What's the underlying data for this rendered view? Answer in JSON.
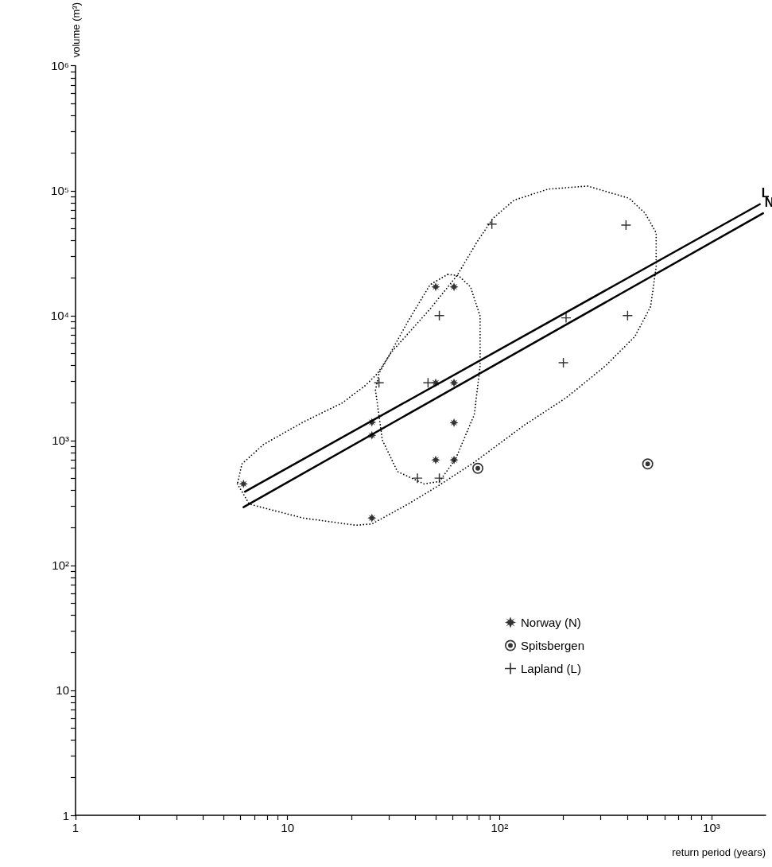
{
  "chart_data": {
    "type": "scatter",
    "xlabel": "return period (years)",
    "ylabel": "volume (m³)",
    "log": "xy",
    "grid": false,
    "legend": "bottom right",
    "xlim": [
      1,
      1800
    ],
    "ylim": [
      1,
      1000000
    ],
    "xticks": [
      1,
      {
        "value": 2,
        "label": null
      },
      {
        "value": 3,
        "label": null
      },
      {
        "value": 4,
        "label": null
      },
      {
        "value": 5,
        "label": null
      },
      {
        "value": 6,
        "label": null
      },
      {
        "value": 7,
        "label": null
      },
      {
        "value": 8,
        "label": null
      },
      {
        "value": 9,
        "label": null
      },
      10,
      {
        "value": 20,
        "label": null
      },
      {
        "value": 30,
        "label": null
      },
      {
        "value": 40,
        "label": null
      },
      {
        "value": 50,
        "label": null
      },
      {
        "value": 60,
        "label": null
      },
      {
        "value": 70,
        "label": null
      },
      {
        "value": 80,
        "label": null
      },
      {
        "value": 90,
        "label": null
      },
      {
        "value": 100,
        "label": "10²"
      },
      {
        "value": 200,
        "label": null
      },
      {
        "value": 300,
        "label": null
      },
      {
        "value": 400,
        "label": null
      },
      {
        "value": 500,
        "label": null
      },
      {
        "value": 600,
        "label": null
      },
      {
        "value": 700,
        "label": null
      },
      {
        "value": 800,
        "label": null
      },
      {
        "value": 900,
        "label": null
      },
      {
        "value": 1000,
        "label": "10³"
      }
    ],
    "yticks": [
      1,
      {
        "value": 2,
        "label": null
      },
      {
        "value": 3,
        "label": null
      },
      {
        "value": 4,
        "label": null
      },
      {
        "value": 5,
        "label": null
      },
      {
        "value": 6,
        "label": null
      },
      {
        "value": 7,
        "label": null
      },
      {
        "value": 8,
        "label": null
      },
      {
        "value": 9,
        "label": null
      },
      10,
      {
        "value": 20,
        "label": null
      },
      {
        "value": 30,
        "label": null
      },
      {
        "value": 40,
        "label": null
      },
      {
        "value": 50,
        "label": null
      },
      {
        "value": 60,
        "label": null
      },
      {
        "value": 70,
        "label": null
      },
      {
        "value": 80,
        "label": null
      },
      {
        "value": 90,
        "label": null
      },
      {
        "value": 100,
        "label": "10²"
      },
      {
        "value": 200,
        "label": null
      },
      {
        "value": 300,
        "label": null
      },
      {
        "value": 400,
        "label": null
      },
      {
        "value": 500,
        "label": null
      },
      {
        "value": 600,
        "label": null
      },
      {
        "value": 700,
        "label": null
      },
      {
        "value": 800,
        "label": null
      },
      {
        "value": 900,
        "label": null
      },
      {
        "value": 1000,
        "label": "10³"
      },
      {
        "value": 2000,
        "label": null
      },
      {
        "value": 3000,
        "label": null
      },
      {
        "value": 4000,
        "label": null
      },
      {
        "value": 5000,
        "label": null
      },
      {
        "value": 6000,
        "label": null
      },
      {
        "value": 7000,
        "label": null
      },
      {
        "value": 8000,
        "label": null
      },
      {
        "value": 9000,
        "label": null
      },
      {
        "value": 10000,
        "label": "10⁴"
      },
      {
        "value": 20000,
        "label": null
      },
      {
        "value": 30000,
        "label": null
      },
      {
        "value": 40000,
        "label": null
      },
      {
        "value": 50000,
        "label": null
      },
      {
        "value": 60000,
        "label": null
      },
      {
        "value": 70000,
        "label": null
      },
      {
        "value": 80000,
        "label": null
      },
      {
        "value": 90000,
        "label": null
      },
      {
        "value": 100000,
        "label": "10⁵"
      },
      {
        "value": 200000,
        "label": null
      },
      {
        "value": 300000,
        "label": null
      },
      {
        "value": 400000,
        "label": null
      },
      {
        "value": 500000,
        "label": null
      },
      {
        "value": 600000,
        "label": null
      },
      {
        "value": 700000,
        "label": null
      },
      {
        "value": 800000,
        "label": null
      },
      {
        "value": 900000,
        "label": null
      },
      {
        "value": 1000000,
        "label": "10⁶"
      }
    ],
    "series": [
      {
        "type": "line",
        "name": "L",
        "line_style": "solid",
        "marker": "none",
        "color": "#000000",
        "x": [
          6.3,
          1690
        ],
        "values": [
          390,
          78000
        ]
      },
      {
        "type": "line",
        "name": "N",
        "line_style": "solid",
        "marker": "none",
        "color": "#000000",
        "x": [
          6.2,
          1750
        ],
        "values": [
          293,
          66000
        ]
      },
      {
        "name": "Norway (N)",
        "marker": "star",
        "color": "#000000",
        "x": [
          6.2,
          25,
          25,
          25,
          50,
          61,
          50,
          61,
          61,
          50,
          61
        ],
        "values": [
          450,
          240,
          1400,
          1100,
          2900,
          2900,
          17000,
          17000,
          1390,
          700,
          700
        ]
      },
      {
        "name": "Spitsbergen",
        "marker": "circle",
        "color": "#000000",
        "x": [
          79,
          500
        ],
        "values": [
          600,
          650
        ]
      },
      {
        "name": "Lapland (L)",
        "marker": "cross",
        "color": "#000000",
        "x": [
          92,
          52,
          27,
          46,
          41,
          52,
          395,
          206,
          402,
          200
        ],
        "values": [
          54000,
          10000,
          2900,
          2900,
          500,
          500,
          53000,
          9600,
          10000,
          4200
        ]
      }
    ]
  }
}
